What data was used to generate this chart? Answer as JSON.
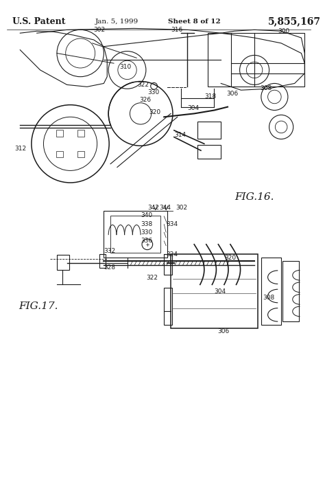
{
  "title": "U.S. Patent",
  "date": "Jan. 5, 1999",
  "sheet": "Sheet 8 of 12",
  "patent_num": "5,855,167",
  "fig16_label": "FIG.16.",
  "fig17_label": "FIG.17.",
  "bg_color": "#ffffff",
  "line_color": "#1a1a1a"
}
